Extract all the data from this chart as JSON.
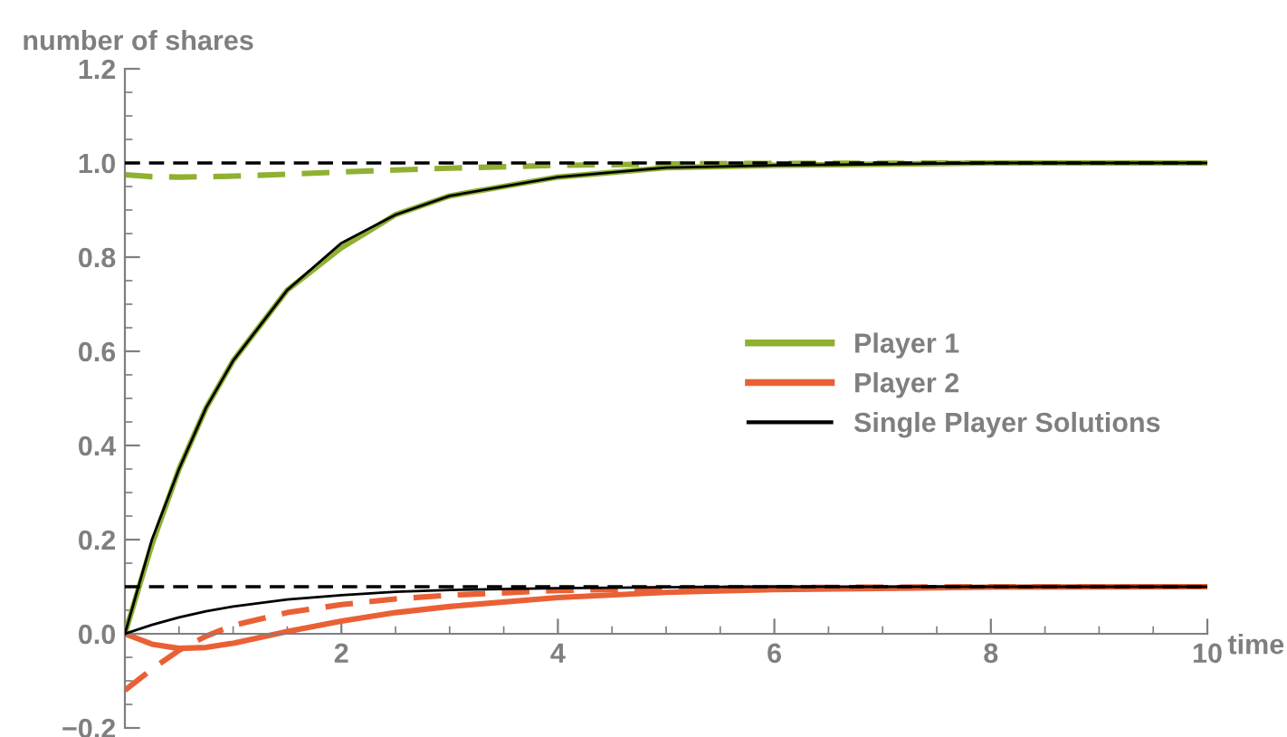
{
  "chart_data": {
    "type": "line",
    "xlabel": "time",
    "ylabel": "number of shares",
    "x": [
      0,
      0.25,
      0.5,
      0.75,
      1,
      1.5,
      2,
      2.5,
      3,
      4,
      5,
      6,
      8,
      10
    ],
    "series": [
      {
        "name": "Player 1",
        "color": "#8fb032",
        "line_style": "solid",
        "values": [
          0,
          0.19,
          0.35,
          0.48,
          0.58,
          0.73,
          0.82,
          0.89,
          0.93,
          0.97,
          0.99,
          0.995,
          1.0,
          1.0
        ]
      },
      {
        "color": "#8fb032",
        "line_style": "dashed",
        "values": [
          0.975,
          0.971,
          0.97,
          0.971,
          0.972,
          0.976,
          0.981,
          0.985,
          0.989,
          0.995,
          0.998,
          0.999,
          1.0,
          1.0
        ]
      },
      {
        "name": "Player 2",
        "color": "#ea6035",
        "line_style": "solid",
        "values": [
          0,
          -0.022,
          -0.031,
          -0.029,
          -0.02,
          0.005,
          0.027,
          0.045,
          0.058,
          0.077,
          0.088,
          0.094,
          0.099,
          0.1
        ]
      },
      {
        "color": "#ea6035",
        "line_style": "dashed",
        "values": [
          -0.12,
          -0.075,
          -0.035,
          -0.005,
          0.018,
          0.045,
          0.062,
          0.074,
          0.082,
          0.092,
          0.096,
          0.098,
          0.1,
          0.1
        ]
      },
      {
        "name": "Single Player Solutions",
        "color": "#000000",
        "line_style": "solid",
        "values": [
          0,
          0.2,
          0.35,
          0.48,
          0.58,
          0.73,
          0.83,
          0.89,
          0.93,
          0.97,
          0.99,
          0.995,
          1.0,
          1.0
        ]
      },
      {
        "color": "#000000",
        "line_style": "solid",
        "values": [
          0,
          0.019,
          0.035,
          0.048,
          0.058,
          0.073,
          0.082,
          0.089,
          0.093,
          0.097,
          0.099,
          0.1,
          0.1,
          0.1
        ]
      }
    ],
    "ref_lines": [
      {
        "axis": "y",
        "value": 1.0,
        "color": "#000000",
        "line_style": "dashed"
      },
      {
        "axis": "y",
        "value": 0.1,
        "color": "#000000",
        "line_style": "dashed"
      }
    ],
    "xlim": [
      0,
      10
    ],
    "xticks": [
      2,
      4,
      6,
      8,
      10
    ],
    "ylim": [
      -0.2,
      1.2
    ],
    "yticks": [
      {
        "value": -0.2,
        "label": "−0.2"
      },
      {
        "value": 0,
        "label": "0.0"
      },
      0.2,
      0.4,
      0.6,
      0.8,
      {
        "value": 1.0,
        "label": "1.0"
      },
      1.2
    ],
    "grid": false,
    "legend": "right",
    "marker": "none"
  }
}
